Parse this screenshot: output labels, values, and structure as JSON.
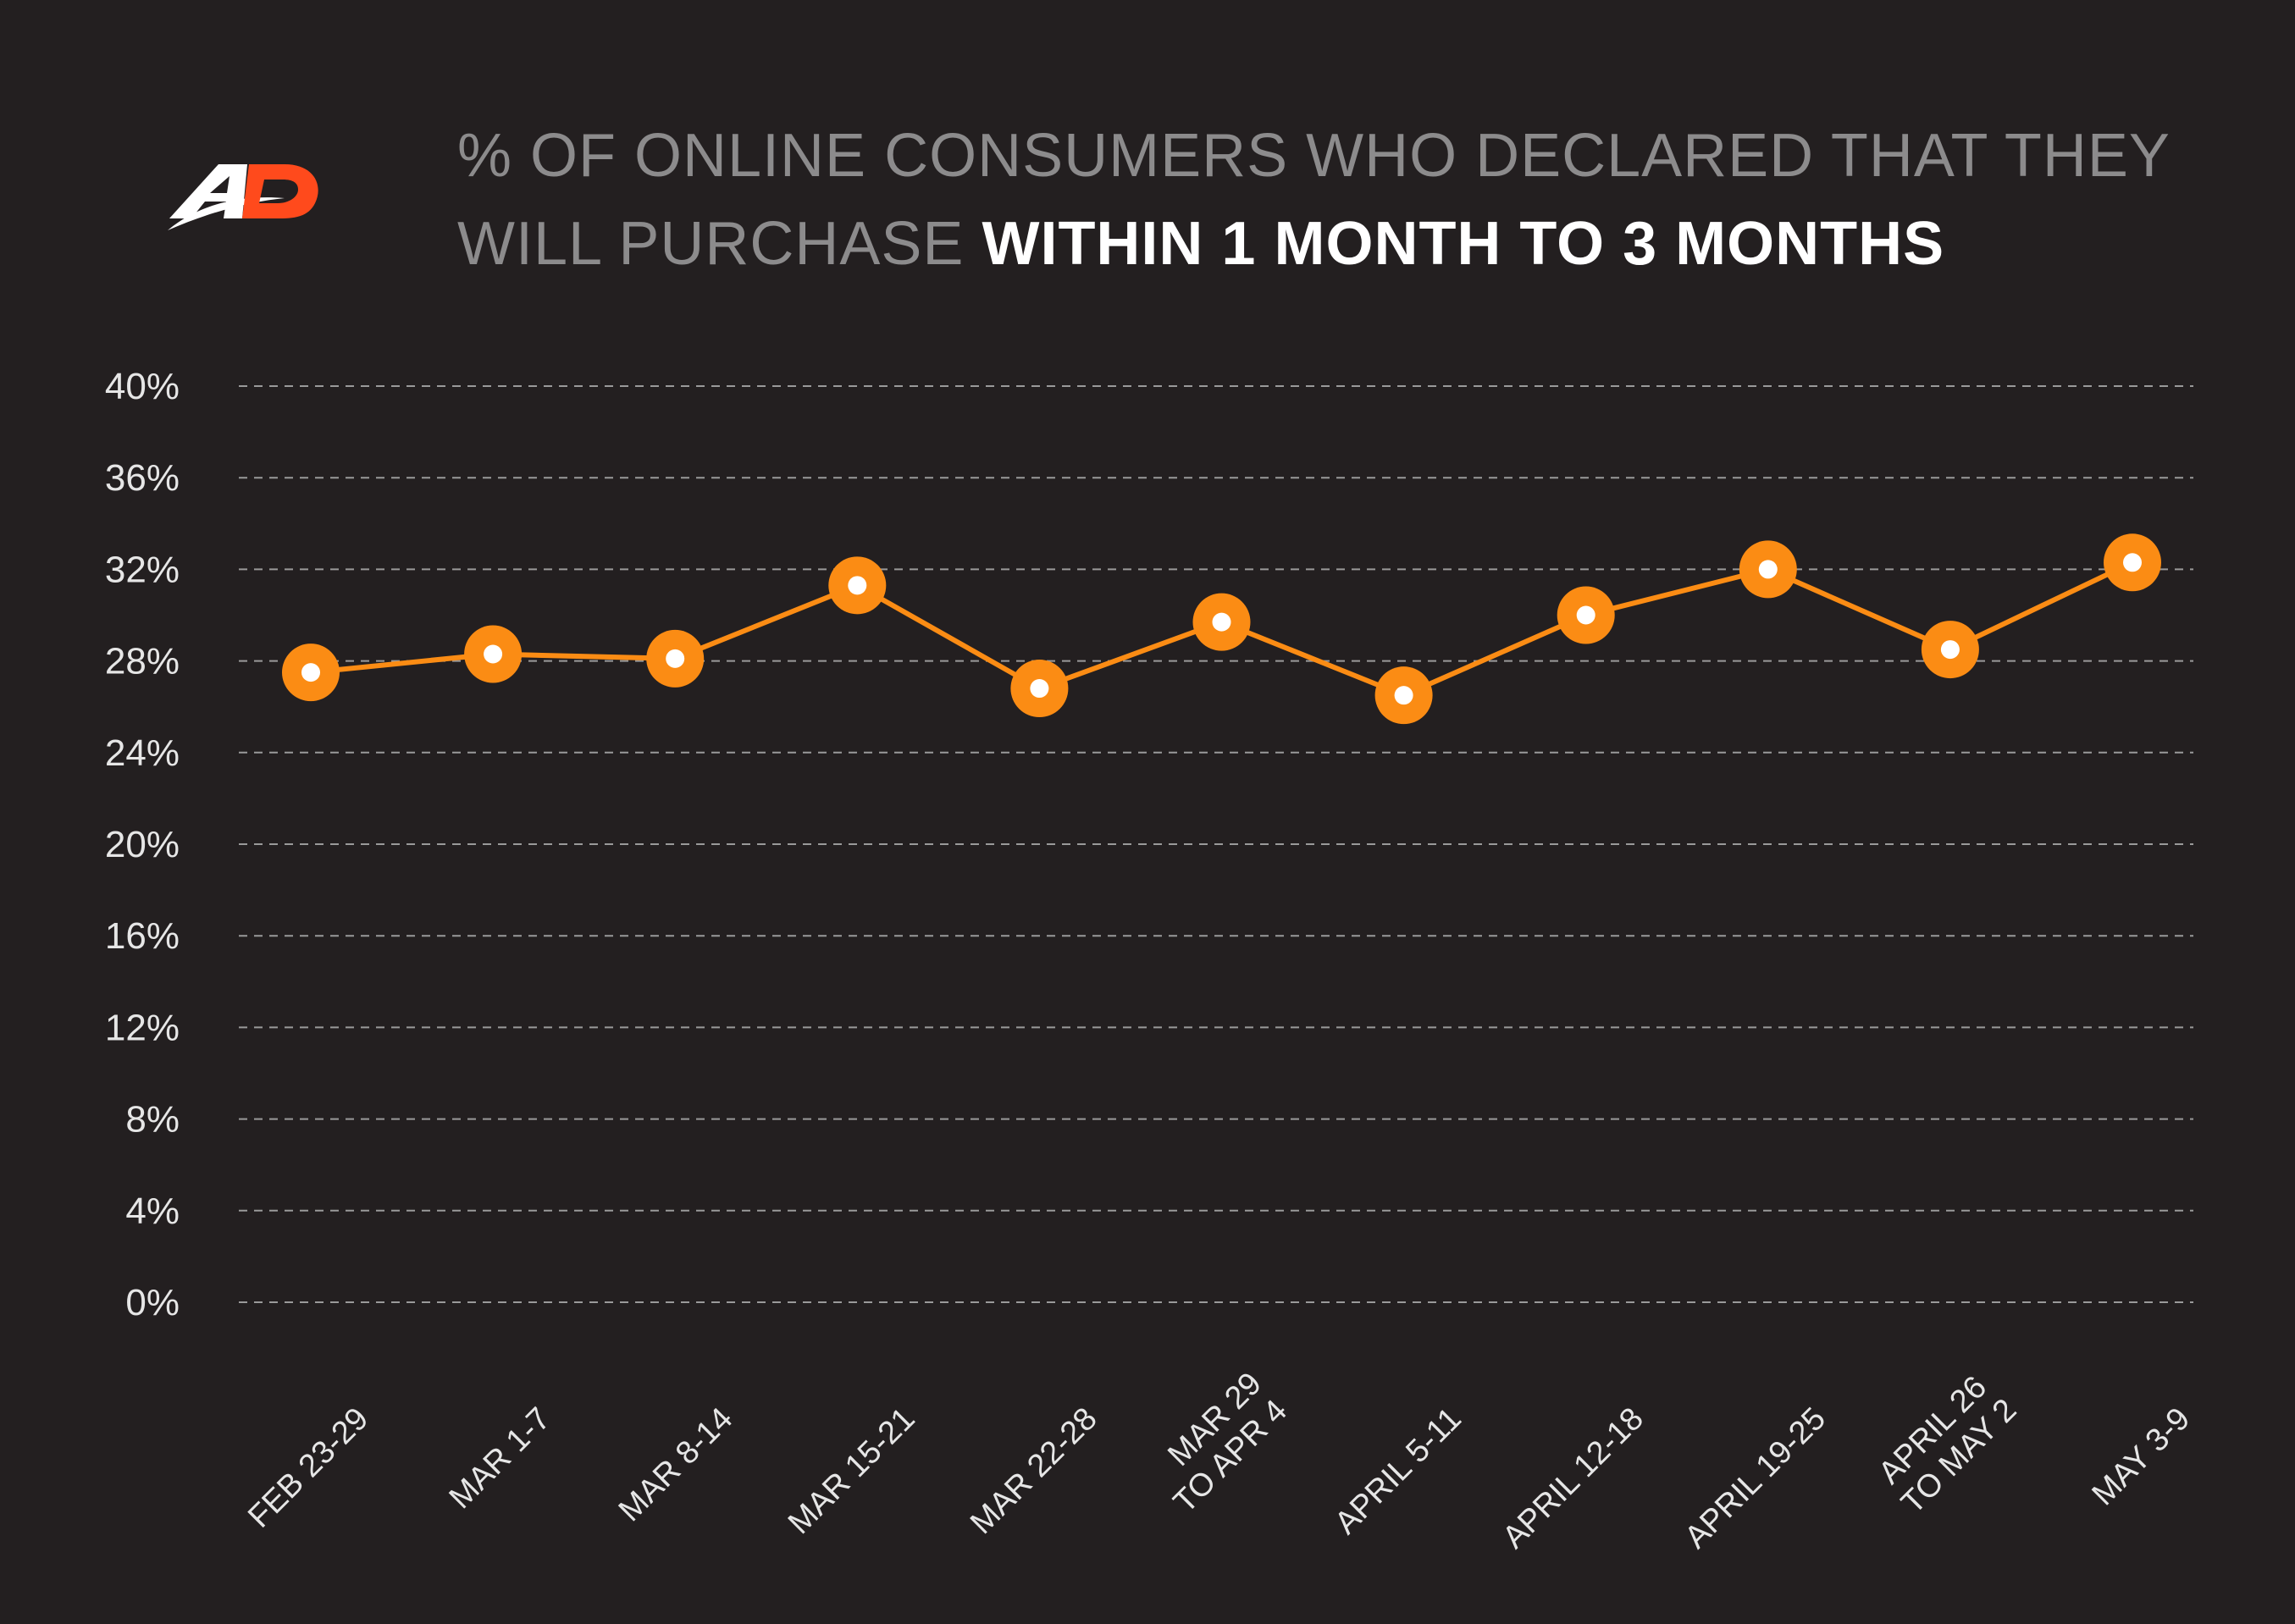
{
  "brand": {
    "logo_text": "AD",
    "logo_colors": [
      "#ffffff",
      "#ff4a1c"
    ]
  },
  "title": {
    "line_part": "% OF ONLINE CONSUMERS WHO DECLARED THAT THEY WILL PURCHASE",
    "highlight": "WITHIN 1 MONTH TO 3 MONTHS"
  },
  "colors": {
    "background": "#231f20",
    "series": "#fb8c14",
    "marker_center": "#ffffff",
    "grid": "#9a9a9a",
    "title_muted": "#8c8b8c",
    "title_highlight": "#ffffff"
  },
  "chart_data": {
    "type": "line",
    "title": "% OF ONLINE CONSUMERS WHO DECLARED THAT THEY WILL PURCHASE WITHIN 1 MONTH TO 3 MONTHS",
    "categories": [
      [
        "FEB 23-29"
      ],
      [
        "MAR 1-7"
      ],
      [
        "MAR 8-14"
      ],
      [
        "MAR 15-21"
      ],
      [
        "MAR 22-28"
      ],
      [
        "MAR 29",
        "TO APR 4"
      ],
      [
        "APRIL 5-11"
      ],
      [
        "APRIL 12-18"
      ],
      [
        "APRIL 19-25"
      ],
      [
        "APRIL 26",
        "TO MAY 2"
      ],
      [
        "MAY 3-9"
      ]
    ],
    "series": [
      {
        "values": [
          27.5,
          28.3,
          28.1,
          31.3,
          26.8,
          29.7,
          26.5,
          30.0,
          32.0,
          28.5,
          32.3
        ]
      }
    ],
    "y_ticks": [
      "0%",
      "4%",
      "8%",
      "12%",
      "16%",
      "20%",
      "24%",
      "28%",
      "32%",
      "36%",
      "40%"
    ],
    "ylim": [
      0,
      40
    ],
    "y_unit": "%",
    "grid": true,
    "grid_style": "dashed",
    "legend": "none"
  }
}
